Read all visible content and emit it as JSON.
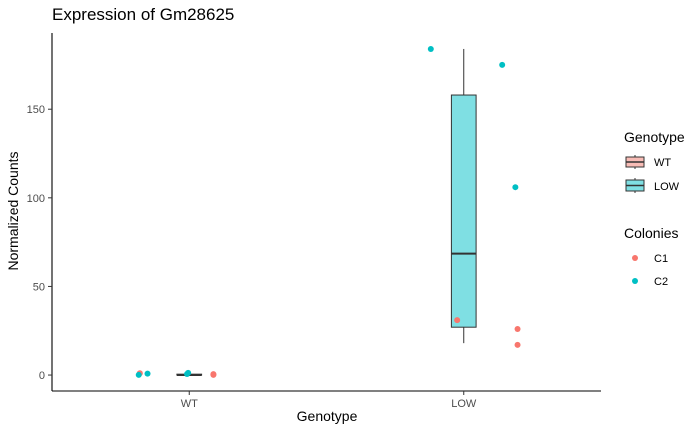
{
  "chart_data": {
    "type": "boxplot",
    "title": "Expression of Gm28625",
    "xlabel": "Genotype",
    "ylabel": "Normalized Counts",
    "categories": [
      "WT",
      "LOW"
    ],
    "ylim": [
      -9,
      193
    ],
    "yticks": [
      0,
      50,
      100,
      150
    ],
    "boxes": [
      {
        "category": "WT",
        "genotype": "WT",
        "min": 0,
        "q1": 0,
        "median": 0,
        "q3": 0.5,
        "max": 1
      },
      {
        "category": "LOW",
        "genotype": "LOW",
        "min": 18,
        "q1": 27,
        "median": 68.5,
        "q3": 158,
        "max": 184
      }
    ],
    "points": [
      {
        "category": "WT",
        "offset": -0.18,
        "y": 1,
        "colony": "C1"
      },
      {
        "category": "WT",
        "offset": 0.088,
        "y": 0.5,
        "colony": "C1"
      },
      {
        "category": "WT",
        "offset": 0.088,
        "y": 0.1,
        "colony": "C1"
      },
      {
        "category": "WT",
        "offset": -0.184,
        "y": 0.1,
        "colony": "C2"
      },
      {
        "category": "WT",
        "offset": -0.152,
        "y": 0.8,
        "colony": "C2"
      },
      {
        "category": "WT",
        "offset": -0.008,
        "y": 0.6,
        "colony": "C2"
      },
      {
        "category": "WT",
        "offset": -0.004,
        "y": 1.2,
        "colony": "C2"
      },
      {
        "category": "LOW",
        "offset": -0.024,
        "y": 31,
        "colony": "C1"
      },
      {
        "category": "LOW",
        "offset": 0.196,
        "y": 17,
        "colony": "C1"
      },
      {
        "category": "LOW",
        "offset": 0.196,
        "y": 26,
        "colony": "C1"
      },
      {
        "category": "LOW",
        "offset": -0.12,
        "y": 184,
        "colony": "C2"
      },
      {
        "category": "LOW",
        "offset": 0.14,
        "y": 175,
        "colony": "C2"
      },
      {
        "category": "LOW",
        "offset": 0.188,
        "y": 106,
        "colony": "C2"
      }
    ],
    "legend": {
      "placement": "right",
      "genotype": {
        "title": "Genotype",
        "items": [
          {
            "label": "WT",
            "color": "#F8BCB6"
          },
          {
            "label": "LOW",
            "color": "#7FDFE3"
          }
        ]
      },
      "colonies": {
        "title": "Colonies",
        "items": [
          {
            "label": "C1",
            "color": "#F8766D"
          },
          {
            "label": "C2",
            "color": "#00BFC4"
          }
        ]
      }
    },
    "colors": {
      "WT_fill": "#F8BCB6",
      "LOW_fill": "#7FDFE3",
      "C1": "#F8766D",
      "C2": "#00BFC4"
    },
    "grid": false
  }
}
